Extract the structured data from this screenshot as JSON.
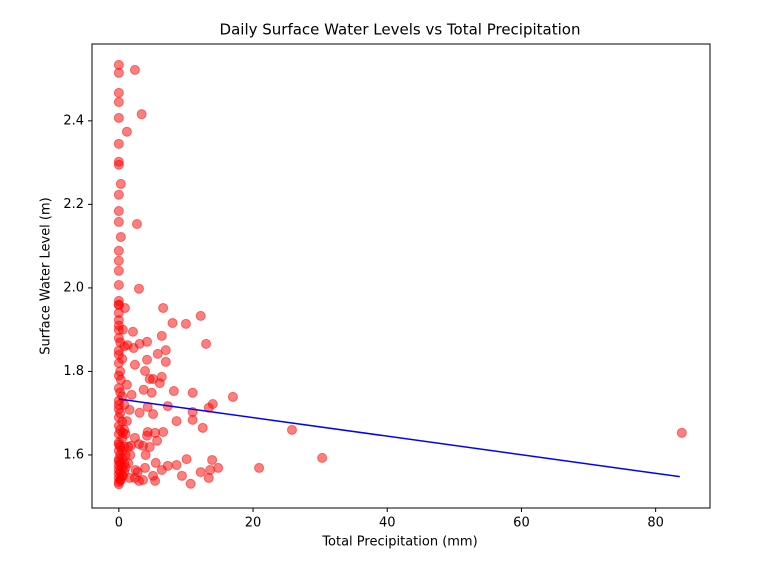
{
  "chart_data": {
    "type": "scatter",
    "title": "Daily Surface Water Levels vs Total Precipitation",
    "x_label": "Total Precipitation (mm)",
    "y_label": "Surface Water Level (m)",
    "xlim": [
      -4.0,
      88.1
    ],
    "ylim": [
      1.473,
      2.584
    ],
    "xticks": [
      0,
      20,
      40,
      60,
      80
    ],
    "yticks": [
      1.6,
      1.8,
      {
        "value": 2,
        "label": "2.0"
      },
      2.2,
      2.4
    ],
    "grid": false,
    "points": {
      "color": "#ff0000",
      "x": [
        0,
        0,
        2.4,
        0,
        0,
        3.4,
        0,
        1.2,
        0,
        0,
        0,
        0.3,
        0,
        0,
        0,
        2.7,
        0.3,
        0,
        0,
        0,
        0,
        3.0,
        0,
        0,
        0.9,
        6.6,
        12.2,
        8.0,
        10.0,
        0,
        0,
        2.1,
        6.4,
        13.0,
        4.2,
        3.1,
        1.3,
        2.2,
        7.0,
        5.8,
        4.2,
        7.0,
        2.4,
        3.9,
        6.4,
        4.6,
        5.1,
        6.1,
        1.2,
        3.7,
        8.2,
        11.0,
        4.9,
        1.9,
        17.0,
        14.0,
        7.3,
        13.4,
        4.3,
        1.6,
        5.1,
        3.1,
        11.0,
        11.0,
        8.6,
        1.2,
        12.5,
        25.8,
        6.6,
        4.3,
        5.4,
        83.9,
        0.6,
        4.2,
        2.4,
        5.7,
        3.0,
        3.6,
        4.6,
        1.8,
        4.0,
        10.1,
        13.9,
        30.3,
        8.6,
        5.5,
        7.3,
        3.9,
        6.4,
        14.8,
        20.9,
        13.6,
        12.2,
        2.5,
        2.8,
        9.4,
        5.1,
        1.6,
        13.4,
        3.6,
        5.4,
        3.0,
        10.7,
        2.4,
        0,
        0,
        0,
        0,
        0,
        0,
        0,
        0,
        0,
        0,
        0,
        0,
        0,
        0,
        0,
        0,
        0,
        0,
        0,
        0,
        0.2,
        0.2,
        0.2,
        0.2,
        0.2,
        0.2,
        0.2,
        0.2,
        0.2,
        0.2,
        0.5,
        0.5,
        0.5,
        0.5,
        0.5,
        0.5,
        0.5,
        0.5,
        0.8,
        0.8,
        0.8,
        0.8,
        0.8,
        0.8,
        1.0,
        1.0,
        1.0,
        1.4,
        1.4,
        1.7,
        0,
        0,
        0,
        0,
        0,
        0,
        0.3,
        0.3,
        0.6,
        0.6
      ],
      "y": [
        2.534,
        2.515,
        2.522,
        2.467,
        2.445,
        2.416,
        2.407,
        2.374,
        2.345,
        2.302,
        2.295,
        2.249,
        2.223,
        2.184,
        2.158,
        2.153,
        2.122,
        2.089,
        2.065,
        2.041,
        2.007,
        1.998,
        1.969,
        1.959,
        1.952,
        1.952,
        1.933,
        1.916,
        1.914,
        1.923,
        1.899,
        1.895,
        1.885,
        1.866,
        1.871,
        1.866,
        1.863,
        1.856,
        1.851,
        1.842,
        1.828,
        1.823,
        1.816,
        1.801,
        1.787,
        1.782,
        1.782,
        1.772,
        1.768,
        1.756,
        1.753,
        1.749,
        1.749,
        1.744,
        1.739,
        1.722,
        1.717,
        1.713,
        1.715,
        1.708,
        1.698,
        1.701,
        1.703,
        1.684,
        1.681,
        1.681,
        1.665,
        1.66,
        1.655,
        1.655,
        1.653,
        1.653,
        1.653,
        1.646,
        1.641,
        1.634,
        1.626,
        1.622,
        1.619,
        1.622,
        1.6,
        1.59,
        1.588,
        1.593,
        1.576,
        1.581,
        1.574,
        1.569,
        1.564,
        1.569,
        1.569,
        1.564,
        1.559,
        1.564,
        1.559,
        1.55,
        1.55,
        1.545,
        1.545,
        1.54,
        1.538,
        1.538,
        1.531,
        1.545,
        1.535,
        1.545,
        1.555,
        1.565,
        1.575,
        1.59,
        1.61,
        1.63,
        1.65,
        1.67,
        1.69,
        1.71,
        1.73,
        1.76,
        1.79,
        1.82,
        1.85,
        1.88,
        1.91,
        1.94,
        1.54,
        1.56,
        1.58,
        1.6,
        1.62,
        1.66,
        1.7,
        1.75,
        1.8,
        1.87,
        1.55,
        1.57,
        1.59,
        1.61,
        1.64,
        1.68,
        1.74,
        1.83,
        1.56,
        1.58,
        1.62,
        1.66,
        1.72,
        1.86,
        1.57,
        1.6,
        1.65,
        1.58,
        1.62,
        1.6,
        1.53,
        1.585,
        1.625,
        1.72,
        1.84,
        1.96,
        1.54,
        1.78,
        1.55,
        1.9
      ]
    },
    "fit": {
      "color": "#0000ff",
      "x": [
        0,
        83.6
      ],
      "y": [
        1.734,
        1.548
      ]
    }
  }
}
